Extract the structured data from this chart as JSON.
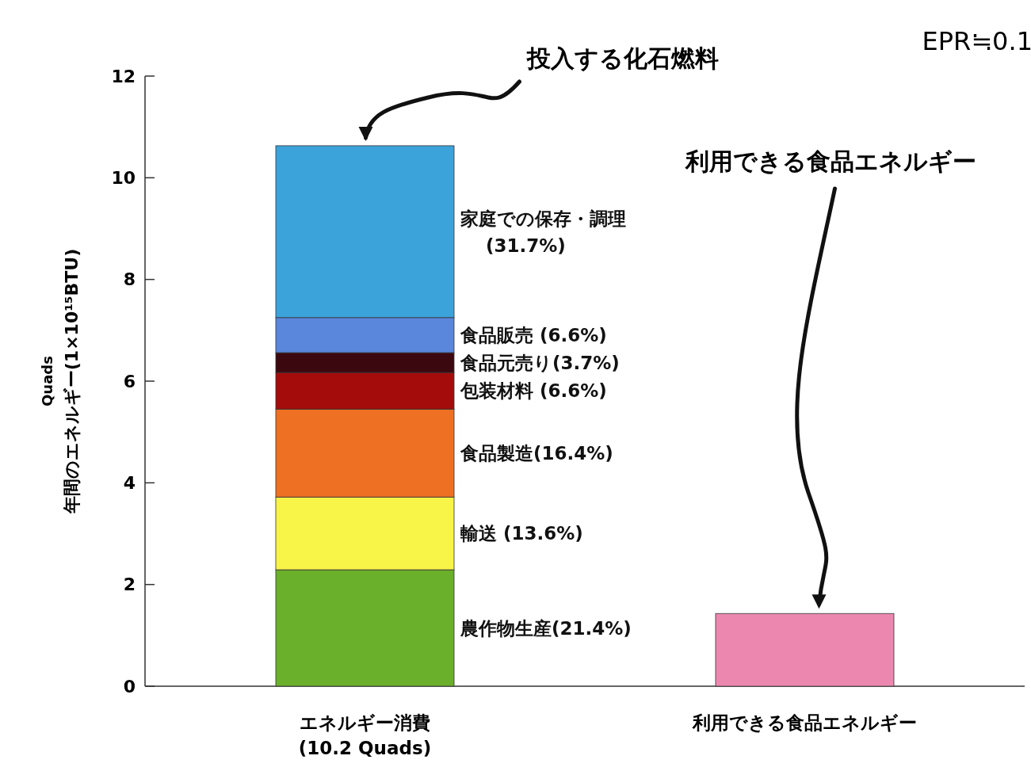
{
  "chart_data": {
    "type": "bar",
    "stacked": true,
    "ylabel": "Quads\n年間のエネルギー(1×10¹⁵BTU)",
    "categories": [
      "エネルギー消費\n(10.2 Quads)",
      "利用できる食品エネルギー"
    ],
    "series": [
      {
        "name": "農作物生産(21.4%)",
        "color": "#6ab02a",
        "values": [
          2.29,
          null
        ]
      },
      {
        "name": "輸送 (13.6%)",
        "color": "#f8f448",
        "values": [
          1.43,
          null
        ]
      },
      {
        "name": "食品製造(16.4%)",
        "color": "#ee7022",
        "values": [
          1.73,
          null
        ]
      },
      {
        "name": "包装材料 (6.6%)",
        "color": "#a40c0c",
        "values": [
          0.72,
          null
        ]
      },
      {
        "name": "食品元売り(3.7%)",
        "color": "#3c0810",
        "values": [
          0.39,
          null
        ]
      },
      {
        "name": "食品販売 (6.6%)",
        "color": "#5a86dc",
        "values": [
          0.69,
          null
        ]
      },
      {
        "name": "家庭での保存・調理\n(31.7%)",
        "color": "#3ca2da",
        "values": [
          3.38,
          null
        ]
      },
      {
        "color": "#ec88b0",
        "values": [
          null,
          1.43
        ]
      }
    ],
    "ylim": [
      0,
      12
    ],
    "yticks": [
      0,
      2,
      4,
      6,
      8,
      10,
      12
    ],
    "annotations": [
      "投入する化石燃料",
      "利用できる食品エネルギー",
      "EPR≒0.1"
    ]
  }
}
